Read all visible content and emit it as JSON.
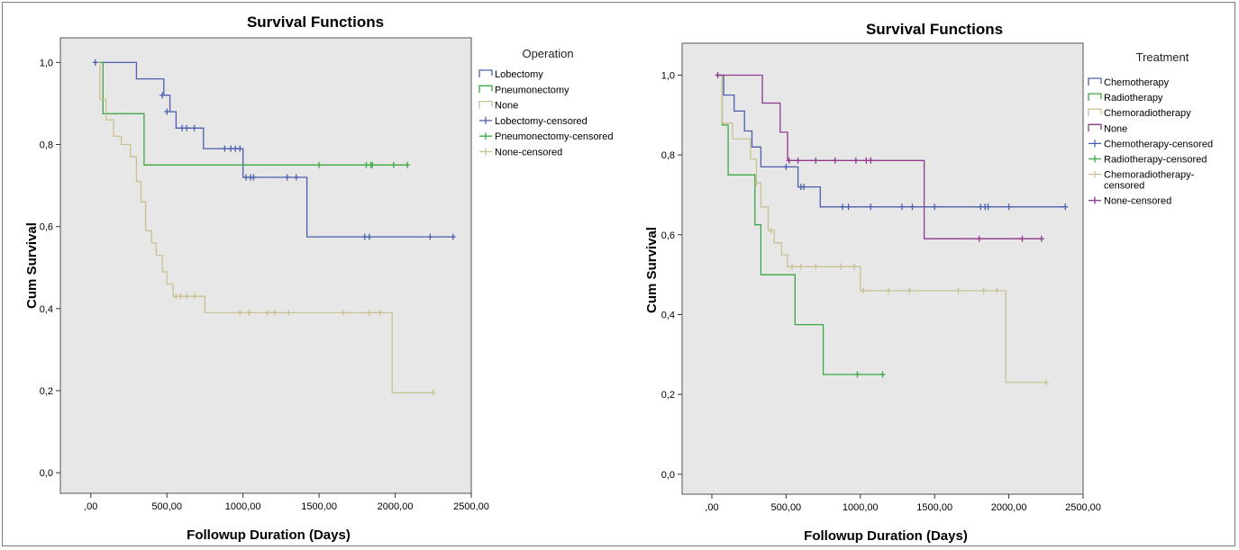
{
  "chart_data": [
    {
      "type": "line",
      "step": true,
      "title": "Survival Functions",
      "xlabel": "Followup Duration (Days)",
      "ylabel": "Cum Survival",
      "xlim": [
        -200,
        2500
      ],
      "ylim": [
        -0.05,
        1.06
      ],
      "xticks": [
        0,
        500,
        1000,
        1500,
        2000,
        2500
      ],
      "xtick_labels": [
        ",00",
        "500,00",
        "1000,00",
        "1500,00",
        "2000,00",
        "2500,00"
      ],
      "yticks": [
        0,
        0.2,
        0.4,
        0.6,
        0.8,
        1.0
      ],
      "ytick_labels": [
        "0,0",
        "0,2",
        "0,4",
        "0,6",
        "0,8",
        "1,0"
      ],
      "legend_title": "Operation",
      "legend_position": "right",
      "legend": [
        "Lobectomy",
        "Pneumonectomy",
        "None",
        "Lobectomy-censored",
        "Pneumonectomy-censored",
        "None-censored"
      ],
      "series": [
        {
          "name": "Lobectomy",
          "color": "#4a5fae",
          "x": [
            30,
            250,
            300,
            480,
            520,
            560,
            600,
            700,
            740,
            1000,
            1420,
            2380
          ],
          "y": [
            1.0,
            1.0,
            0.96,
            0.92,
            0.88,
            0.84,
            0.84,
            0.84,
            0.79,
            0.72,
            0.575,
            0.575
          ],
          "censored_x": [
            30,
            470,
            500,
            600,
            630,
            680,
            880,
            920,
            950,
            980,
            1020,
            1050,
            1070,
            1290,
            1350,
            1800,
            1830,
            2230,
            2380
          ],
          "censored_y": [
            1.0,
            0.92,
            0.88,
            0.84,
            0.84,
            0.84,
            0.79,
            0.79,
            0.79,
            0.79,
            0.72,
            0.72,
            0.72,
            0.72,
            0.72,
            0.575,
            0.575,
            0.575,
            0.575
          ]
        },
        {
          "name": "Pneumonectomy",
          "color": "#3aa843",
          "x": [
            40,
            80,
            350,
            2080
          ],
          "y": [
            1.0,
            0.875,
            0.75,
            0.75
          ],
          "censored_x": [
            1500,
            1810,
            1840,
            1850,
            1990,
            2080
          ],
          "censored_y": [
            0.75,
            0.75,
            0.75,
            0.75,
            0.75,
            0.75
          ]
        },
        {
          "name": "None",
          "color": "#c9c193",
          "x": [
            20,
            60,
            100,
            150,
            200,
            260,
            300,
            330,
            360,
            400,
            430,
            470,
            500,
            540,
            580,
            750,
            1980,
            2250
          ],
          "y": [
            1.0,
            0.91,
            0.86,
            0.82,
            0.8,
            0.77,
            0.71,
            0.66,
            0.59,
            0.56,
            0.53,
            0.49,
            0.46,
            0.43,
            0.43,
            0.39,
            0.195,
            0.195
          ],
          "censored_x": [
            560,
            590,
            630,
            680,
            980,
            1040,
            1160,
            1210,
            1300,
            1660,
            1830,
            1900,
            2250
          ],
          "censored_y": [
            0.43,
            0.43,
            0.43,
            0.43,
            0.39,
            0.39,
            0.39,
            0.39,
            0.39,
            0.39,
            0.39,
            0.39,
            0.195
          ]
        }
      ]
    },
    {
      "type": "line",
      "step": true,
      "title": "Survival Functions",
      "xlabel": "Followup Duration (Days)",
      "ylabel": "Cum Survival",
      "xlim": [
        -200,
        2500
      ],
      "ylim": [
        -0.05,
        1.08
      ],
      "xticks": [
        0,
        500,
        1000,
        1500,
        2000,
        2500
      ],
      "xtick_labels": [
        ",00",
        "500,00",
        "1000,00",
        "1500,00",
        "2000,00",
        "2500,00"
      ],
      "yticks": [
        0,
        0.2,
        0.4,
        0.6,
        0.8,
        1.0
      ],
      "ytick_labels": [
        "0,0",
        "0,2",
        "0,4",
        "0,6",
        "0,8",
        "1,0"
      ],
      "legend_title": "Treatment",
      "legend_position": "right",
      "legend": [
        "Chemotherapy",
        "Radiotherapy",
        "Chemoradiotherapy",
        "None",
        "Chemotherapy-censored",
        "Radiotherapy-censored",
        "Chemoradiotherapy-\ncensored",
        "None-censored"
      ],
      "series": [
        {
          "name": "Chemotherapy",
          "color": "#4a5fae",
          "x": [
            30,
            80,
            150,
            220,
            270,
            330,
            400,
            580,
            730,
            2380
          ],
          "y": [
            1.0,
            0.95,
            0.91,
            0.86,
            0.82,
            0.77,
            0.77,
            0.72,
            0.67,
            0.67
          ],
          "censored_x": [
            500,
            600,
            620,
            880,
            920,
            1070,
            1280,
            1350,
            1500,
            1810,
            1840,
            1860,
            2000,
            2380
          ],
          "censored_y": [
            0.77,
            0.72,
            0.72,
            0.67,
            0.67,
            0.67,
            0.67,
            0.67,
            0.67,
            0.67,
            0.67,
            0.67,
            0.67,
            0.67
          ]
        },
        {
          "name": "Radiotherapy",
          "color": "#3aa843",
          "x": [
            30,
            70,
            110,
            290,
            330,
            370,
            560,
            750,
            1150
          ],
          "y": [
            1.0,
            0.875,
            0.75,
            0.625,
            0.5,
            0.5,
            0.375,
            0.25,
            0.25
          ],
          "censored_x": [
            980,
            1150
          ],
          "censored_y": [
            0.25,
            0.25
          ]
        },
        {
          "name": "Chemoradiotherapy",
          "color": "#c9c193",
          "x": [
            20,
            70,
            140,
            260,
            300,
            330,
            380,
            420,
            470,
            510,
            1000,
            1980,
            2250
          ],
          "y": [
            1.0,
            0.88,
            0.84,
            0.79,
            0.73,
            0.67,
            0.61,
            0.58,
            0.55,
            0.52,
            0.46,
            0.23,
            0.23
          ],
          "censored_x": [
            300,
            400,
            540,
            600,
            700,
            870,
            960,
            1020,
            1190,
            1330,
            1660,
            1830,
            1920,
            2250
          ],
          "censored_y": [
            0.73,
            0.61,
            0.52,
            0.52,
            0.52,
            0.52,
            0.52,
            0.46,
            0.46,
            0.46,
            0.46,
            0.46,
            0.46,
            0.23
          ]
        },
        {
          "name": "None",
          "color": "#8d3a8c",
          "x": [
            40,
            340,
            460,
            510,
            530,
            1430,
            2220
          ],
          "y": [
            1.0,
            0.93,
            0.857,
            0.786,
            0.786,
            0.59,
            0.59
          ],
          "censored_x": [
            40,
            520,
            580,
            700,
            830,
            970,
            1040,
            1070,
            1800,
            2090,
            2220
          ],
          "censored_y": [
            1.0,
            0.786,
            0.786,
            0.786,
            0.786,
            0.786,
            0.786,
            0.786,
            0.59,
            0.59,
            0.59
          ]
        }
      ]
    }
  ],
  "panels_meta": {
    "plot_bg": "#e7e7e7",
    "frame_color": "#555555"
  }
}
